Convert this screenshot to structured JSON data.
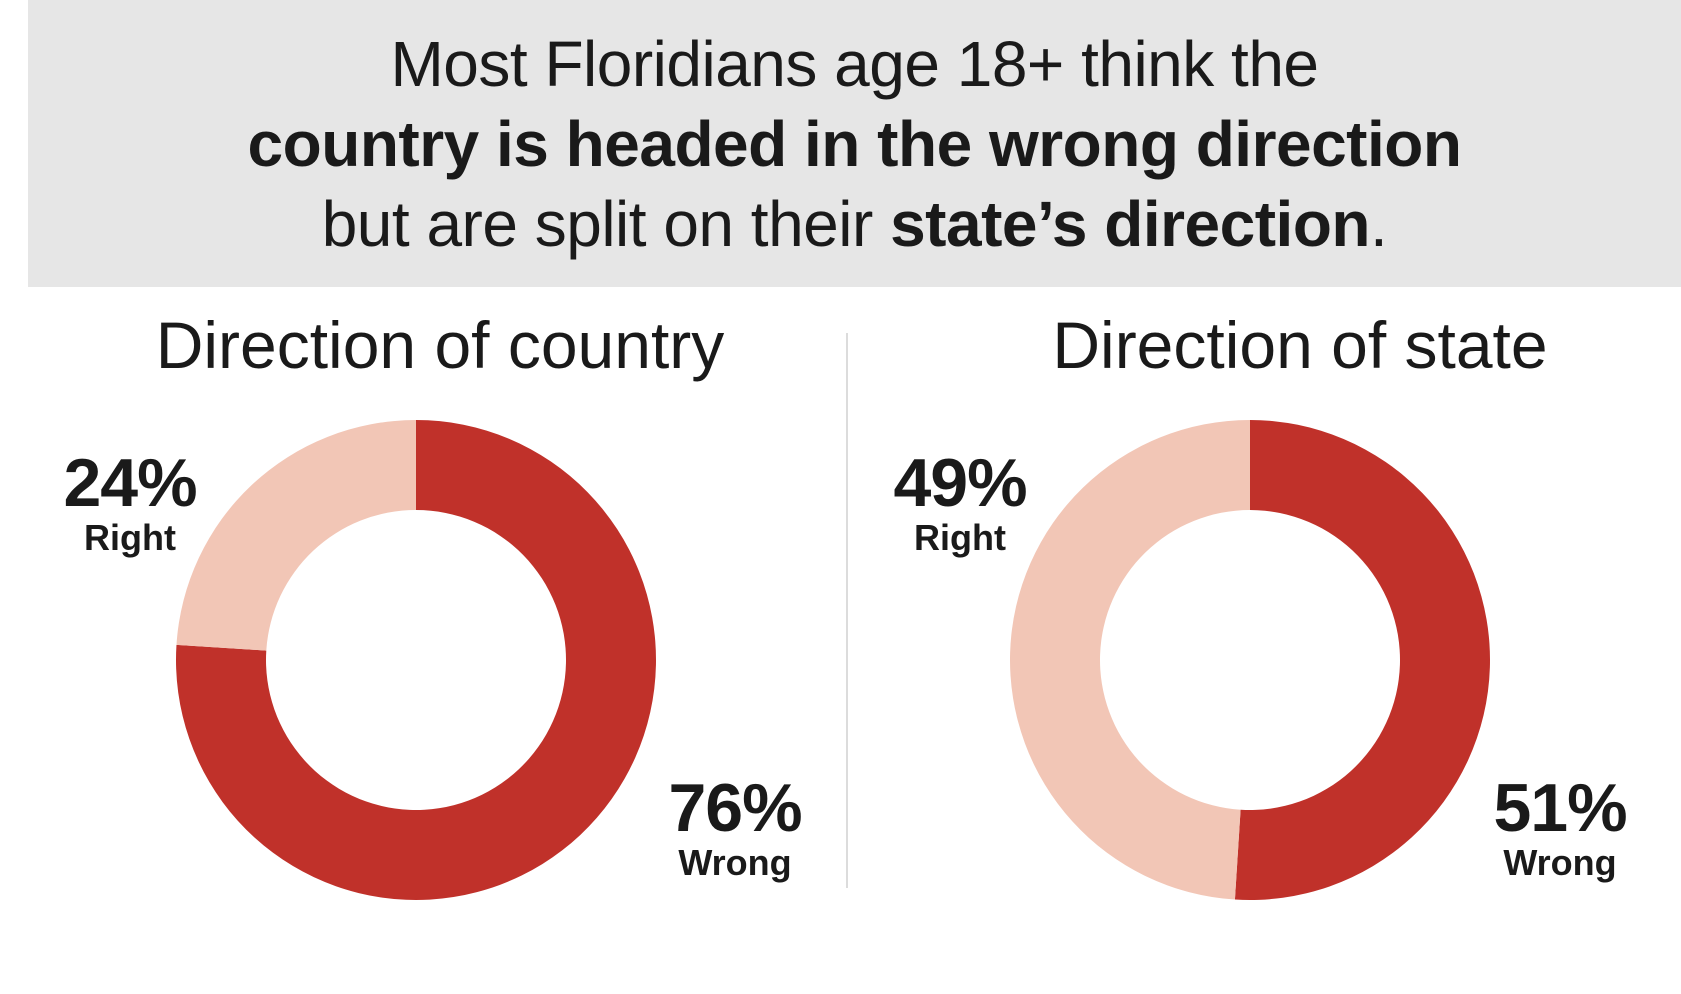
{
  "headline": {
    "line1": "Most Floridians age 18+ think the",
    "line2_bold": "country is headed in the wrong direction",
    "line3_plain": "but are split on their ",
    "line3_bold": "state’s direction",
    "line3_end": "."
  },
  "colors": {
    "wrong": "#c0312a",
    "right": "#f2c6b6",
    "banner": "#e6e6e6"
  },
  "chart_data": [
    {
      "type": "pie",
      "variant": "donut",
      "title": "Direction of country",
      "categories": [
        "Right",
        "Wrong"
      ],
      "values": [
        24,
        76
      ],
      "labels": {
        "right_pct": "24%",
        "right": "Right",
        "wrong_pct": "76%",
        "wrong": "Wrong"
      }
    },
    {
      "type": "pie",
      "variant": "donut",
      "title": "Direction of state",
      "categories": [
        "Right",
        "Wrong"
      ],
      "values": [
        49,
        51
      ],
      "labels": {
        "right_pct": "49%",
        "right": "Right",
        "wrong_pct": "51%",
        "wrong": "Wrong"
      }
    }
  ]
}
